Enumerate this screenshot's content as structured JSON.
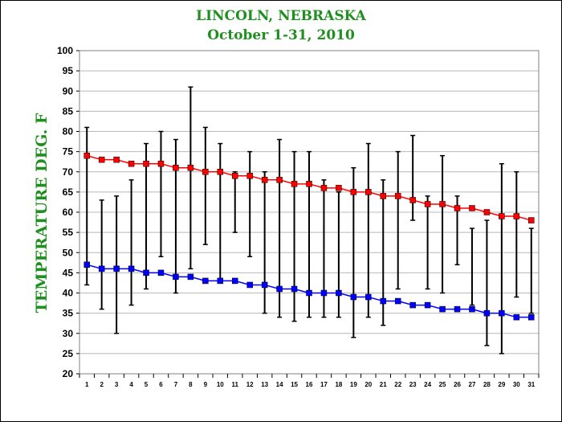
{
  "chart_data": {
    "type": "line",
    "title": "LINCOLN, NEBRASKA",
    "subtitle": "October 1-31, 2010",
    "xlabel": "",
    "ylabel": "TEMPERATURE DEG. F",
    "categories": [
      "1",
      "2",
      "3",
      "4",
      "5",
      "6",
      "7",
      "8",
      "9",
      "10",
      "11",
      "12",
      "13",
      "14",
      "15",
      "16",
      "17",
      "18",
      "19",
      "20",
      "21",
      "22",
      "23",
      "24",
      "25",
      "26",
      "27",
      "28",
      "29",
      "30",
      "31"
    ],
    "ylim": [
      20,
      100
    ],
    "yticks": [
      20,
      25,
      30,
      35,
      40,
      45,
      50,
      55,
      60,
      65,
      70,
      75,
      80,
      85,
      90,
      95,
      100
    ],
    "grid": true,
    "legend": "none",
    "series": [
      {
        "color": "#ff0000",
        "values": [
          74,
          73,
          73,
          72,
          72,
          72,
          71,
          71,
          70,
          70,
          69,
          69,
          68,
          68,
          67,
          67,
          66,
          66,
          65,
          65,
          64,
          64,
          63,
          62,
          62,
          61,
          61,
          60,
          59,
          59,
          58
        ]
      },
      {
        "color": "#0000ff",
        "values": [
          47,
          46,
          46,
          46,
          45,
          45,
          44,
          44,
          43,
          43,
          43,
          42,
          42,
          41,
          41,
          40,
          40,
          40,
          39,
          39,
          38,
          38,
          37,
          37,
          36,
          36,
          36,
          35,
          35,
          34,
          34
        ]
      }
    ],
    "range_bars": {
      "color": "#000000",
      "low": [
        42,
        36,
        30,
        37,
        41,
        49,
        40,
        46,
        52,
        43,
        55,
        49,
        35,
        34,
        33,
        34,
        34,
        34,
        29,
        34,
        32,
        41,
        58,
        41,
        40,
        47,
        37,
        27,
        25,
        39,
        35
      ],
      "high": [
        81,
        63,
        64,
        68,
        77,
        80,
        78,
        91,
        81,
        77,
        70,
        75,
        70,
        78,
        75,
        75,
        68,
        65,
        71,
        77,
        68,
        75,
        79,
        64,
        74,
        64,
        56,
        58,
        72,
        70,
        56
      ]
    }
  }
}
